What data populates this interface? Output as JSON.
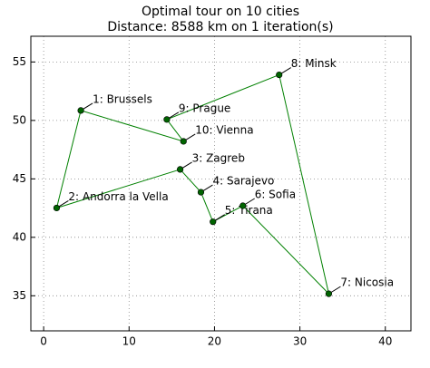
{
  "chart_data": {
    "type": "line",
    "title": "Optimal tour on 10 cities",
    "subtitle": "Distance: 8588 km on 1 iteration(s)",
    "x": [
      4.35,
      1.52,
      15.98,
      18.41,
      19.82,
      23.32,
      33.38,
      27.57,
      14.42,
      16.37
    ],
    "series": [
      {
        "values": [
          50.85,
          42.51,
          45.81,
          43.86,
          41.33,
          42.7,
          35.17,
          53.9,
          50.08,
          48.21
        ],
        "color": "#008000",
        "marker_color": "#006400"
      }
    ],
    "labels": [
      "1: Brussels",
      "2: Andorra la Vella",
      "3: Zagreb",
      "4: Sarajevo",
      "5: Tirana",
      "6: Sofia",
      "7: Nicosia",
      "8: Minsk",
      "9: Prague",
      "10: Vienna"
    ],
    "closed": true,
    "xlim": [
      -1.5,
      43
    ],
    "xticks": [
      0,
      10,
      20,
      30,
      40
    ],
    "ylim": [
      32,
      57.2
    ],
    "yticks": [
      35,
      40,
      45,
      50,
      55
    ],
    "grid": true
  }
}
